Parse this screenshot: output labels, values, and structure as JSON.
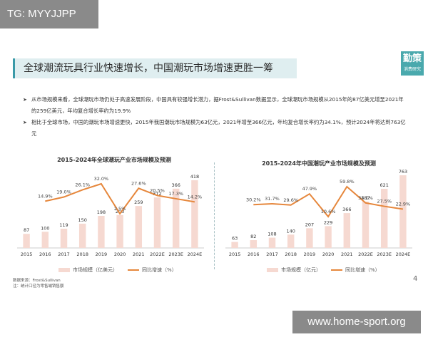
{
  "watermark_top": "TG: MYYJJPP",
  "watermark_bottom": "www.home-sport.org",
  "title": "全球潮流玩具行业快速增长，中国潮玩市场增速更胜一筹",
  "brand": {
    "main": "勤策",
    "sub": "消费研究"
  },
  "bullets": [
    "从市场规模来看，全球潮玩市场仍处于高速发展阶段，中国具有较强增长潜力，据Frost&Sullivan数据显示，全球潮玩市场规模从2015年的87亿美元增至2021年的259亿美元，年均复合增长率约为19.9%",
    "相比于全球市场，中国的潮玩市场增速更快，2015年我国潮玩市场规模为63亿元，2021年增至366亿元，年均复合增长率约为34.1%，预计2024年将达到763亿元"
  ],
  "source": {
    "line1": "数据来源：Frost&Sullivan",
    "line2": "注：统计口径为零售端销售额"
  },
  "page_number": "4",
  "colors": {
    "bar": "#f6d9d1",
    "line": "#e6873c",
    "accent": "#4aa9ad",
    "title_bg": "#dfeef0"
  },
  "chart_data": [
    {
      "type": "bar",
      "title": "2015-2024年全球潮玩产业市场规模及预测",
      "categories": [
        "2015",
        "2016",
        "2017",
        "2018",
        "2019",
        "2020",
        "2021",
        "2022E",
        "2023E",
        "2024E"
      ],
      "series": [
        {
          "name": "市场规模（亿美元）",
          "values": [
            87,
            100,
            119,
            150,
            198,
            203,
            259,
            312,
            366,
            418
          ]
        }
      ],
      "line_series": [
        {
          "name": "同比增速（%）",
          "values_label": [
            "",
            "14.9%",
            "19.0%",
            "26.1%",
            "32.0%",
            "2.5%",
            "27.6%",
            "20.5%",
            "17.3%",
            "14.2%"
          ],
          "values": [
            null,
            14.9,
            19.0,
            26.1,
            32.0,
            2.5,
            27.6,
            20.5,
            17.3,
            14.2
          ]
        }
      ],
      "xlabel": "",
      "ylabel": ""
    },
    {
      "type": "bar",
      "title": "2015-2024年中国潮玩产业市场规模及预测",
      "categories": [
        "2015",
        "2016",
        "2017",
        "2018",
        "2019",
        "2020",
        "2021",
        "2022E",
        "2023E",
        "2024E"
      ],
      "series": [
        {
          "name": "市场规模（亿元）",
          "values": [
            63,
            82,
            108,
            140,
            207,
            229,
            366,
            487,
            621,
            763
          ]
        }
      ],
      "line_series": [
        {
          "name": "同比增速（%）",
          "values_label": [
            "",
            "30.2%",
            "31.7%",
            "29.6%",
            "47.9%",
            "10.6%",
            "59.8%",
            "33.1%",
            "27.5%",
            "22.9%"
          ],
          "values": [
            null,
            30.2,
            31.7,
            29.6,
            47.9,
            10.6,
            59.8,
            33.1,
            27.5,
            22.9
          ]
        }
      ],
      "xlabel": "",
      "ylabel": ""
    }
  ]
}
